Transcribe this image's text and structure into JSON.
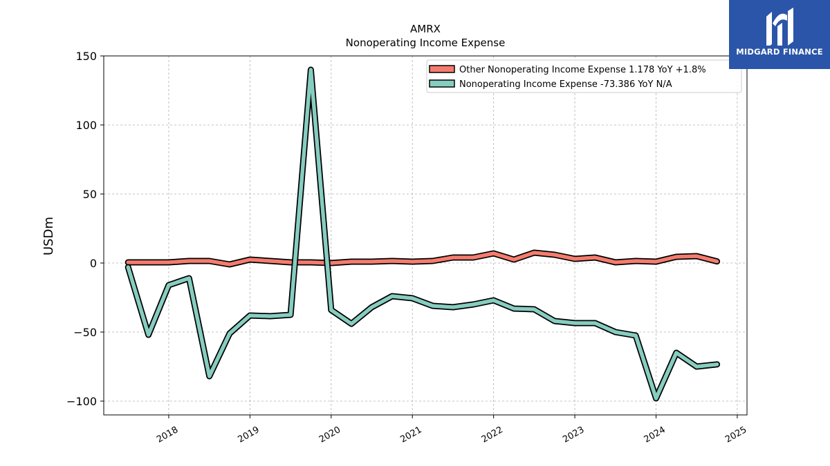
{
  "brand": {
    "name": "MIDGARD FINANCE",
    "logo_color": "#2a55a8"
  },
  "chart_data": {
    "type": "line",
    "title": "AMRX",
    "subtitle": "Nonoperating Income Expense",
    "ylabel": "USDm",
    "xlabel": "",
    "ylim": [
      -110,
      150
    ],
    "xlim": [
      2017.2,
      2025.12
    ],
    "yticks": [
      -100,
      -50,
      0,
      50,
      100,
      150
    ],
    "ytick_labels": [
      "−100",
      "−50",
      "0",
      "50",
      "100",
      "150"
    ],
    "xticks": [
      2018,
      2019,
      2020,
      2021,
      2022,
      2023,
      2024,
      2025
    ],
    "xtick_labels": [
      "2018",
      "2019",
      "2020",
      "2021",
      "2022",
      "2023",
      "2024",
      "2025"
    ],
    "grid": true,
    "legend_position": "top-right",
    "x": [
      2017.5,
      2017.75,
      2018.0,
      2018.25,
      2018.5,
      2018.75,
      2019.0,
      2019.25,
      2019.5,
      2019.75,
      2020.0,
      2020.25,
      2020.5,
      2020.75,
      2021.0,
      2021.25,
      2021.5,
      2021.75,
      2022.0,
      2022.25,
      2022.5,
      2022.75,
      2023.0,
      2023.25,
      2023.5,
      2023.75,
      2024.0,
      2024.25,
      2024.5,
      2024.75
    ],
    "series": [
      {
        "name": "Other Nonoperating Income Expense",
        "legend_label": "Other Nonoperating Income Expense  1.178 YoY +1.8%",
        "color": "#f47c6e",
        "values": [
          0.5,
          0.5,
          0.5,
          1.5,
          1.5,
          -1,
          2.5,
          1.5,
          0.5,
          0.5,
          0,
          1,
          1,
          1.5,
          1,
          1.5,
          4,
          4,
          7,
          2.5,
          7.5,
          6,
          3,
          4,
          0.5,
          1.5,
          1,
          4.5,
          5,
          1.2
        ]
      },
      {
        "name": "Nonoperating Income Expense",
        "legend_label": "Nonoperating Income Expense  -73.386 YoY N/A",
        "color": "#86cdc0",
        "values": [
          -3,
          -52,
          -16,
          -11,
          -82,
          -51,
          -38,
          -38.5,
          -37.5,
          140,
          -34,
          -44,
          -32,
          -24,
          -25.5,
          -31,
          -32,
          -30,
          -27,
          -33,
          -33.5,
          -42,
          -43.5,
          -43.5,
          -50,
          -52.5,
          -98,
          -65,
          -75,
          -73.4
        ]
      }
    ]
  }
}
